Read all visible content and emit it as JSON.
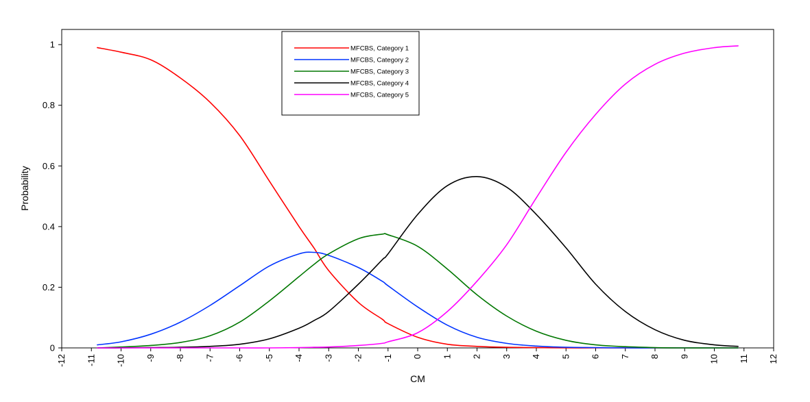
{
  "chart_data": {
    "type": "line",
    "title": "",
    "xlabel": "CM",
    "ylabel": "Probability",
    "xlim": [
      -12,
      12
    ],
    "ylim": [
      0,
      1.05
    ],
    "x_ticks": [
      -12,
      -11,
      -10,
      -9,
      -8,
      -7,
      -6,
      -5,
      -4,
      -3,
      -2,
      -1,
      0,
      1,
      2,
      3,
      4,
      5,
      6,
      7,
      8,
      9,
      10,
      11,
      12
    ],
    "y_ticks": [
      0,
      0.2,
      0.4,
      0.6,
      0.8,
      1
    ],
    "x_tick_labels": [
      "-12",
      "-11",
      "-10",
      "-9",
      "-8",
      "-7",
      "-6",
      "-5",
      "-4",
      "-3",
      "-2",
      "-1",
      "0",
      "1",
      "2",
      "3",
      "4",
      "5",
      "6",
      "7",
      "8",
      "9",
      "10",
      "11",
      "12"
    ],
    "y_tick_labels": [
      "0",
      "0.2",
      "0.4",
      "0.6",
      "0.8",
      "1"
    ],
    "grid": false,
    "legend_position": "top-center",
    "x": [
      -10.8,
      -10,
      -9,
      -8,
      -7,
      -6,
      -5,
      -4,
      -3.5,
      -3,
      -2,
      -1.2,
      -1,
      0,
      1,
      2,
      3,
      4,
      5,
      6,
      7,
      8,
      9,
      10,
      10.8
    ],
    "series": [
      {
        "name": "MFCBS, Category 1",
        "color": "#ff0000",
        "values": [
          0.99,
          0.975,
          0.95,
          0.89,
          0.81,
          0.7,
          0.55,
          0.4,
          0.33,
          0.255,
          0.15,
          0.095,
          0.08,
          0.035,
          0.012,
          0.005,
          0.002,
          0.001,
          0,
          0,
          0,
          0,
          0,
          0,
          0
        ]
      },
      {
        "name": "MFCBS, Category 2",
        "color": "#0033ff",
        "values": [
          0.01,
          0.02,
          0.045,
          0.085,
          0.14,
          0.205,
          0.27,
          0.31,
          0.315,
          0.305,
          0.265,
          0.22,
          0.205,
          0.135,
          0.075,
          0.035,
          0.015,
          0.006,
          0.002,
          0.001,
          0,
          0,
          0,
          0,
          0
        ]
      },
      {
        "name": "MFCBS, Category 3",
        "color": "#007700",
        "values": [
          0,
          0.003,
          0.008,
          0.018,
          0.04,
          0.085,
          0.155,
          0.235,
          0.275,
          0.31,
          0.36,
          0.375,
          0.373,
          0.335,
          0.26,
          0.175,
          0.105,
          0.055,
          0.025,
          0.01,
          0.004,
          0.001,
          0,
          0,
          0
        ]
      },
      {
        "name": "MFCBS, Category 4",
        "color": "#000000",
        "values": [
          0,
          0,
          0.001,
          0.002,
          0.005,
          0.012,
          0.03,
          0.065,
          0.09,
          0.12,
          0.21,
          0.29,
          0.31,
          0.44,
          0.535,
          0.565,
          0.53,
          0.44,
          0.33,
          0.21,
          0.12,
          0.06,
          0.025,
          0.01,
          0.005
        ]
      },
      {
        "name": "MFCBS, Category 5",
        "color": "#ff00ff",
        "values": [
          0,
          0,
          0,
          0,
          0,
          0,
          0,
          0.001,
          0.002,
          0.003,
          0.008,
          0.015,
          0.02,
          0.05,
          0.12,
          0.22,
          0.34,
          0.495,
          0.645,
          0.77,
          0.87,
          0.935,
          0.972,
          0.99,
          0.996
        ]
      }
    ]
  }
}
